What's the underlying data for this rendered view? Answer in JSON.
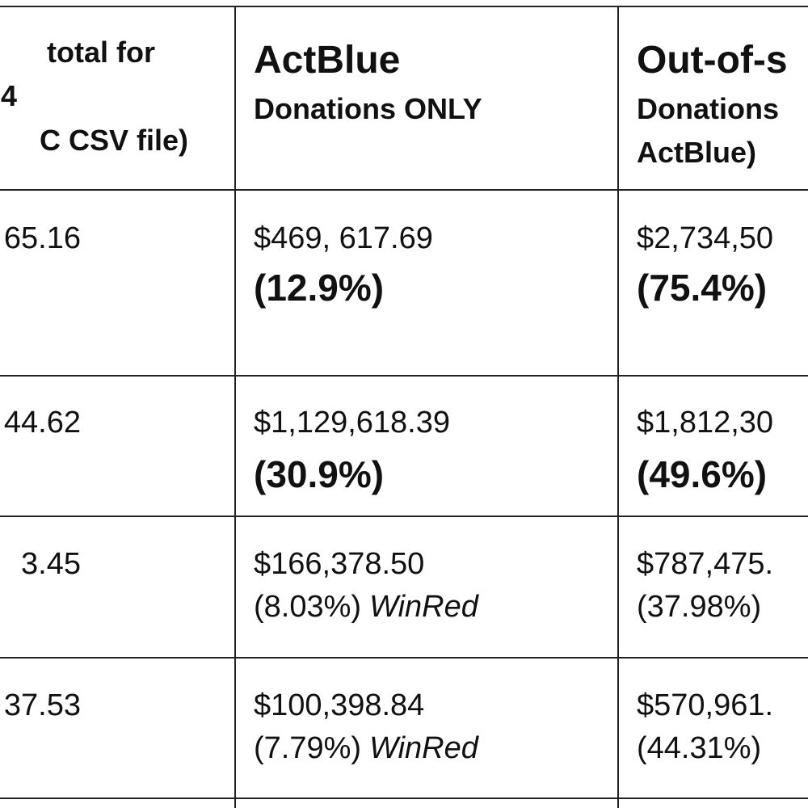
{
  "table": {
    "header": [
      [
        "total for",
        "4",
        "C CSV file)"
      ],
      {
        "title": "ActBlue",
        "subtitle": "Donations ONLY"
      },
      {
        "title": "Out-of-s",
        "lines": [
          "Donations",
          "ActBlue)"
        ]
      }
    ],
    "rows": [
      [
        "65.16",
        {
          "amount": "$469, 617.69",
          "percent": "(12.9%)"
        },
        {
          "amount": "$2,734,50",
          "percent": "(75.4%)"
        }
      ],
      [
        "44.62",
        {
          "amount": "$1,129,618.39",
          "percent": "(30.9%)"
        },
        {
          "amount": "$1,812,30",
          "percent": "(49.6%)"
        }
      ],
      [
        "3.45",
        {
          "amount": "$166,378.50",
          "percent": "(8.03%)",
          "note": "WinRed"
        },
        {
          "amount": "$787,475.",
          "percent": "(37.98%)"
        }
      ],
      [
        "37.53",
        {
          "amount": "$100,398.84",
          "percent": "(7.79%)",
          "note": "WinRed"
        },
        {
          "amount": "$570,961.",
          "percent": "(44.31%)"
        }
      ]
    ]
  }
}
